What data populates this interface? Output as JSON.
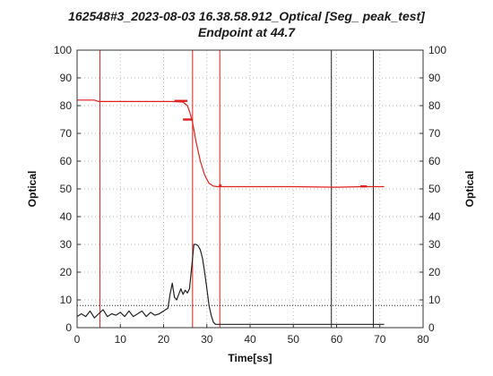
{
  "title": "162548#3_2023-08-03 16.38.58.912_Optical [Seg_ peak_test]",
  "subtitle": "Endpoint at 44.7",
  "chart_data": {
    "type": "line",
    "xlabel": "Time[ss]",
    "ylabel": "Optical",
    "ylabel_right": "Optical",
    "xlim": [
      0,
      80
    ],
    "ylim": [
      0,
      100
    ],
    "xticks": [
      "0",
      "10",
      "20",
      "30",
      "40",
      "50",
      "60",
      "70",
      "80"
    ],
    "yticks": [
      "0",
      "10",
      "20",
      "30",
      "40",
      "50",
      "60",
      "70",
      "80",
      "90",
      "100"
    ],
    "grid": true,
    "series": [
      {
        "color": "#e0201a",
        "x": [
          0,
          4,
          5,
          8,
          12,
          18,
          22,
          24.5,
          25.5,
          26,
          26.7,
          27.5,
          28.5,
          29.5,
          30.5,
          31.5,
          32.5,
          33,
          40,
          50,
          60,
          66,
          70,
          71
        ],
        "y": [
          82,
          82,
          81.5,
          81.5,
          81.5,
          81.5,
          81.5,
          81.3,
          80,
          78,
          74,
          67,
          60,
          55,
          52,
          51,
          50.8,
          50.8,
          50.8,
          50.8,
          50.6,
          50.8,
          50.8,
          50.8
        ]
      },
      {
        "color": "#222222",
        "x": [
          0,
          1,
          2,
          3,
          4,
          5,
          6,
          7,
          8,
          9,
          10,
          11,
          12,
          13,
          14,
          15,
          16,
          17,
          18,
          19,
          20,
          21,
          21.5,
          22,
          22.5,
          23,
          23.5,
          24,
          24.5,
          25,
          25.5,
          26,
          26.5,
          27,
          27.5,
          28,
          28.5,
          29,
          29.5,
          30,
          30.5,
          31,
          31.5,
          32,
          33,
          40,
          50,
          60,
          70,
          71
        ],
        "y": [
          4,
          5,
          4,
          6,
          3.5,
          5,
          6.5,
          4,
          5,
          4.5,
          5.5,
          4,
          6,
          4,
          5,
          6,
          4,
          5.5,
          4.5,
          5,
          6,
          7,
          12,
          16,
          11,
          10,
          12,
          14,
          12,
          13.5,
          12.5,
          14,
          22,
          30,
          30,
          29.5,
          28,
          25,
          20,
          14,
          8,
          4.5,
          2,
          1.2,
          1.2,
          1.2,
          1.2,
          1.2,
          1.2,
          1.2
        ]
      }
    ],
    "vlines_red": [
      5.3,
      26.7,
      33
    ],
    "vlines_black": [
      58.8,
      68.5
    ],
    "hline_black": 8,
    "markers": [
      {
        "x": [
          22.5,
          25.5
        ],
        "y": 81.7,
        "color": "#e0201a"
      },
      {
        "x": [
          24.5,
          26.5
        ],
        "y": 75,
        "color": "#e0201a"
      },
      {
        "x": [
          32.8,
          33.4
        ],
        "y": 51.2,
        "color": "#e0201a"
      },
      {
        "x": [
          65.5,
          67
        ],
        "y": 50.9,
        "color": "#e0201a"
      }
    ]
  }
}
